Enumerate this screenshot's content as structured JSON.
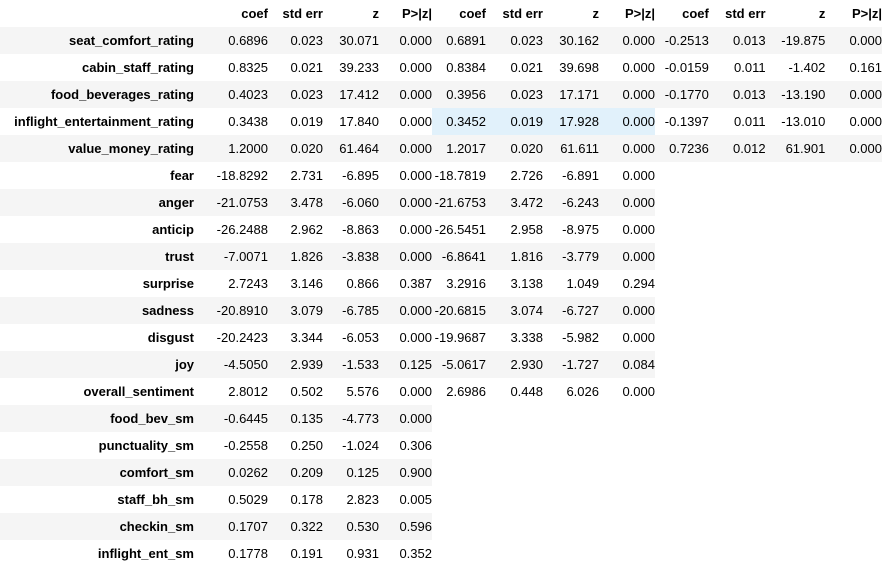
{
  "header": [
    "coef",
    "std err",
    "z",
    "P>|z|"
  ],
  "table1": {
    "rows": [
      {
        "label": "seat_comfort_rating",
        "values": [
          "0.6896",
          "0.023",
          "30.071",
          "0.000"
        ]
      },
      {
        "label": "cabin_staff_rating",
        "values": [
          "0.8325",
          "0.021",
          "39.233",
          "0.000"
        ]
      },
      {
        "label": "food_beverages_rating",
        "values": [
          "0.4023",
          "0.023",
          "17.412",
          "0.000"
        ]
      },
      {
        "label": "inflight_entertainment_rating",
        "values": [
          "0.3438",
          "0.019",
          "17.840",
          "0.000"
        ]
      },
      {
        "label": "value_money_rating",
        "values": [
          "1.2000",
          "0.020",
          "61.464",
          "0.000"
        ]
      },
      {
        "label": "fear",
        "values": [
          "-18.8292",
          "2.731",
          "-6.895",
          "0.000"
        ]
      },
      {
        "label": "anger",
        "values": [
          "-21.0753",
          "3.478",
          "-6.060",
          "0.000"
        ]
      },
      {
        "label": "anticip",
        "values": [
          "-26.2488",
          "2.962",
          "-8.863",
          "0.000"
        ]
      },
      {
        "label": "trust",
        "values": [
          "-7.0071",
          "1.826",
          "-3.838",
          "0.000"
        ]
      },
      {
        "label": "surprise",
        "values": [
          "2.7243",
          "3.146",
          "0.866",
          "0.387"
        ]
      },
      {
        "label": "sadness",
        "values": [
          "-20.8910",
          "3.079",
          "-6.785",
          "0.000"
        ]
      },
      {
        "label": "disgust",
        "values": [
          "-20.2423",
          "3.344",
          "-6.053",
          "0.000"
        ]
      },
      {
        "label": "joy",
        "values": [
          "-4.5050",
          "2.939",
          "-1.533",
          "0.125"
        ]
      },
      {
        "label": "overall_sentiment",
        "values": [
          "2.8012",
          "0.502",
          "5.576",
          "0.000"
        ]
      },
      {
        "label": "food_bev_sm",
        "values": [
          "-0.6445",
          "0.135",
          "-4.773",
          "0.000"
        ]
      },
      {
        "label": "punctuality_sm",
        "values": [
          "-0.2558",
          "0.250",
          "-1.024",
          "0.306"
        ]
      },
      {
        "label": "comfort_sm",
        "values": [
          "0.0262",
          "0.209",
          "0.125",
          "0.900"
        ]
      },
      {
        "label": "staff_bh_sm",
        "values": [
          "0.5029",
          "0.178",
          "2.823",
          "0.005"
        ]
      },
      {
        "label": "checkin_sm",
        "values": [
          "0.1707",
          "0.322",
          "0.530",
          "0.596"
        ]
      },
      {
        "label": "inflight_ent_sm",
        "values": [
          "0.1778",
          "0.191",
          "0.931",
          "0.352"
        ]
      }
    ]
  },
  "table2": {
    "rows": [
      [
        "0.6891",
        "0.023",
        "30.162",
        "0.000"
      ],
      [
        "0.8384",
        "0.021",
        "39.698",
        "0.000"
      ],
      [
        "0.3956",
        "0.023",
        "17.171",
        "0.000"
      ],
      [
        "0.3452",
        "0.019",
        "17.928",
        "0.000"
      ],
      [
        "1.2017",
        "0.020",
        "61.611",
        "0.000"
      ],
      [
        "-18.7819",
        "2.726",
        "-6.891",
        "0.000"
      ],
      [
        "-21.6753",
        "3.472",
        "-6.243",
        "0.000"
      ],
      [
        "-26.5451",
        "2.958",
        "-8.975",
        "0.000"
      ],
      [
        "-6.8641",
        "1.816",
        "-3.779",
        "0.000"
      ],
      [
        "3.2916",
        "3.138",
        "1.049",
        "0.294"
      ],
      [
        "-20.6815",
        "3.074",
        "-6.727",
        "0.000"
      ],
      [
        "-19.9687",
        "3.338",
        "-5.982",
        "0.000"
      ],
      [
        "-5.0617",
        "2.930",
        "-1.727",
        "0.084"
      ],
      [
        "2.6986",
        "0.448",
        "6.026",
        "0.000"
      ]
    ]
  },
  "table3": {
    "rows": [
      [
        "-0.2513",
        "0.013",
        "-19.875",
        "0.000"
      ],
      [
        "-0.0159",
        "0.011",
        "-1.402",
        "0.161"
      ],
      [
        "-0.1770",
        "0.013",
        "-13.190",
        "0.000"
      ],
      [
        "-0.1397",
        "0.011",
        "-13.010",
        "0.000"
      ],
      [
        "0.7236",
        "0.012",
        "61.901",
        "0.000"
      ]
    ]
  },
  "highlight": {
    "table": "table2",
    "row": 3,
    "cols": [
      0,
      1,
      2,
      3
    ],
    "color": "#e1f1fb"
  }
}
